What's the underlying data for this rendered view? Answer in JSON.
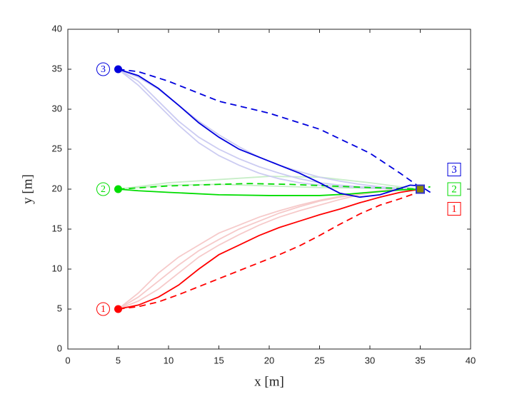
{
  "chart_data": {
    "type": "line",
    "x_label": "x [m]",
    "y_label": "y [m]",
    "xlim": [
      0,
      40
    ],
    "ylim": [
      0,
      40
    ],
    "xticks": [
      0,
      5,
      10,
      15,
      20,
      25,
      30,
      35,
      40
    ],
    "yticks": [
      0,
      5,
      10,
      15,
      20,
      25,
      30,
      35,
      40
    ],
    "series": [
      {
        "color": "#f6caca",
        "style": "solid",
        "x": [
          5,
          7,
          9,
          11,
          13,
          15,
          17,
          19,
          21,
          23,
          25,
          27,
          29,
          31,
          33,
          35
        ],
        "values": [
          5,
          7,
          9.5,
          11.5,
          13,
          14.5,
          15.5,
          16.5,
          17.3,
          18,
          18.6,
          19.1,
          19.5,
          19.8,
          20,
          20.1
        ]
      },
      {
        "color": "#f6caca",
        "style": "solid",
        "x": [
          5,
          7,
          9,
          11,
          13,
          15,
          17,
          19,
          21,
          23,
          25,
          27,
          29,
          31,
          33,
          35
        ],
        "values": [
          5,
          6.5,
          8.5,
          10.5,
          12.3,
          13.7,
          15,
          16,
          17,
          17.8,
          18.5,
          19,
          19.4,
          19.7,
          19.9,
          20
        ]
      },
      {
        "color": "#f6caca",
        "style": "solid",
        "x": [
          5,
          7,
          9,
          11,
          13,
          15,
          17,
          19,
          21,
          23,
          25,
          27,
          29,
          31,
          33,
          35
        ],
        "values": [
          5,
          6,
          7.5,
          9.5,
          11.5,
          13,
          14.3,
          15.5,
          16.5,
          17.3,
          18,
          18.7,
          19.3,
          19.7,
          19.9,
          20
        ]
      },
      {
        "color": "#c8eec8",
        "style": "solid",
        "x": [
          5,
          10,
          15,
          20,
          25,
          30,
          33,
          35
        ],
        "values": [
          20,
          20.8,
          21.2,
          21.6,
          21.5,
          20.8,
          20.3,
          20
        ]
      },
      {
        "color": "#c8eec8",
        "style": "solid",
        "x": [
          5,
          10,
          15,
          20,
          25,
          30,
          35
        ],
        "values": [
          20,
          20.5,
          20.6,
          20.4,
          20.2,
          20.1,
          20
        ]
      },
      {
        "color": "#ccccf2",
        "style": "solid",
        "x": [
          5,
          7,
          9,
          11,
          13,
          15,
          17,
          19,
          21,
          23,
          25,
          27,
          29,
          31,
          33,
          35
        ],
        "values": [
          35,
          33.5,
          31,
          28.5,
          26.5,
          25,
          23.8,
          22.8,
          22,
          21.3,
          20.8,
          20.5,
          20.3,
          20.2,
          20.1,
          20
        ]
      },
      {
        "color": "#ccccf2",
        "style": "solid",
        "x": [
          5,
          7,
          9,
          11,
          13,
          15,
          17,
          19,
          21,
          23,
          25,
          27,
          29,
          31,
          33,
          35
        ],
        "values": [
          35,
          34,
          32.5,
          30.5,
          28.5,
          26.8,
          25.3,
          24,
          23,
          22.2,
          21.5,
          21,
          20.6,
          20.3,
          20.1,
          20
        ]
      },
      {
        "color": "#ccccf2",
        "style": "solid",
        "x": [
          5,
          7,
          9,
          11,
          13,
          15,
          17,
          19,
          21,
          23,
          25,
          27,
          29,
          31,
          33,
          35
        ],
        "values": [
          35,
          33,
          30.5,
          28,
          25.8,
          24.2,
          23,
          22,
          21.3,
          20.8,
          20.5,
          20.3,
          20.2,
          20.1,
          20,
          20
        ]
      },
      {
        "color": "#ff0000",
        "style": "solid",
        "x": [
          5,
          7,
          9,
          11,
          13,
          15,
          17,
          19,
          21,
          23,
          25,
          27,
          29,
          31,
          33,
          35
        ],
        "values": [
          5,
          5.5,
          6.5,
          8,
          10,
          11.8,
          13,
          14.2,
          15.2,
          16,
          16.8,
          17.5,
          18.3,
          19,
          19.6,
          20
        ]
      },
      {
        "color": "#ff0000",
        "style": "dashed",
        "x": [
          5,
          7,
          9,
          11,
          13,
          15,
          17,
          19,
          21,
          23,
          25,
          27,
          29,
          31,
          33,
          35
        ],
        "values": [
          5,
          5.3,
          5.9,
          6.8,
          7.8,
          8.8,
          9.8,
          10.8,
          11.8,
          12.9,
          14.2,
          15.6,
          16.9,
          18,
          18.8,
          19.7
        ]
      },
      {
        "color": "#00dd00",
        "style": "solid",
        "x": [
          5,
          7,
          10,
          15,
          20,
          25,
          28,
          31,
          33,
          35
        ],
        "values": [
          20,
          19.8,
          19.6,
          19.3,
          19.2,
          19.2,
          19.4,
          19.7,
          19.9,
          20
        ]
      },
      {
        "color": "#00dd00",
        "style": "dashed",
        "x": [
          5,
          10,
          15,
          18,
          22,
          26,
          30,
          33,
          35,
          36
        ],
        "values": [
          20,
          20.4,
          20.6,
          20.7,
          20.6,
          20.4,
          20.2,
          20.1,
          20,
          20.3
        ]
      },
      {
        "color": "#0000dd",
        "style": "solid",
        "x": [
          5,
          7,
          9,
          11,
          13,
          15,
          17,
          19,
          21,
          23,
          25,
          27,
          29,
          31,
          33,
          34,
          35,
          36
        ],
        "values": [
          35,
          34.2,
          32.6,
          30.5,
          28.3,
          26.5,
          25,
          24,
          23,
          22,
          20.8,
          19.5,
          19,
          19.3,
          20.1,
          20.5,
          20.4,
          19.6
        ]
      },
      {
        "color": "#0000dd",
        "style": "dashed",
        "x": [
          5,
          7,
          10,
          15,
          20,
          25,
          30,
          33,
          35
        ],
        "values": [
          35,
          34.7,
          33.5,
          31,
          29.5,
          27.5,
          24.5,
          22,
          20.2
        ]
      }
    ],
    "starts": {
      "x": [
        5,
        5,
        5
      ],
      "y": [
        5,
        20,
        35
      ],
      "labels": [
        "1",
        "2",
        "3"
      ],
      "colors": [
        "#ff0000",
        "#00dd00",
        "#0000dd"
      ]
    },
    "goal": {
      "x": 35,
      "y": 20,
      "labels": [
        "3",
        "2",
        "1"
      ],
      "label_colors": [
        "#0000dd",
        "#00dd00",
        "#ff0000"
      ],
      "edge_color": "#3333cc",
      "fill_color": "#888800"
    }
  }
}
